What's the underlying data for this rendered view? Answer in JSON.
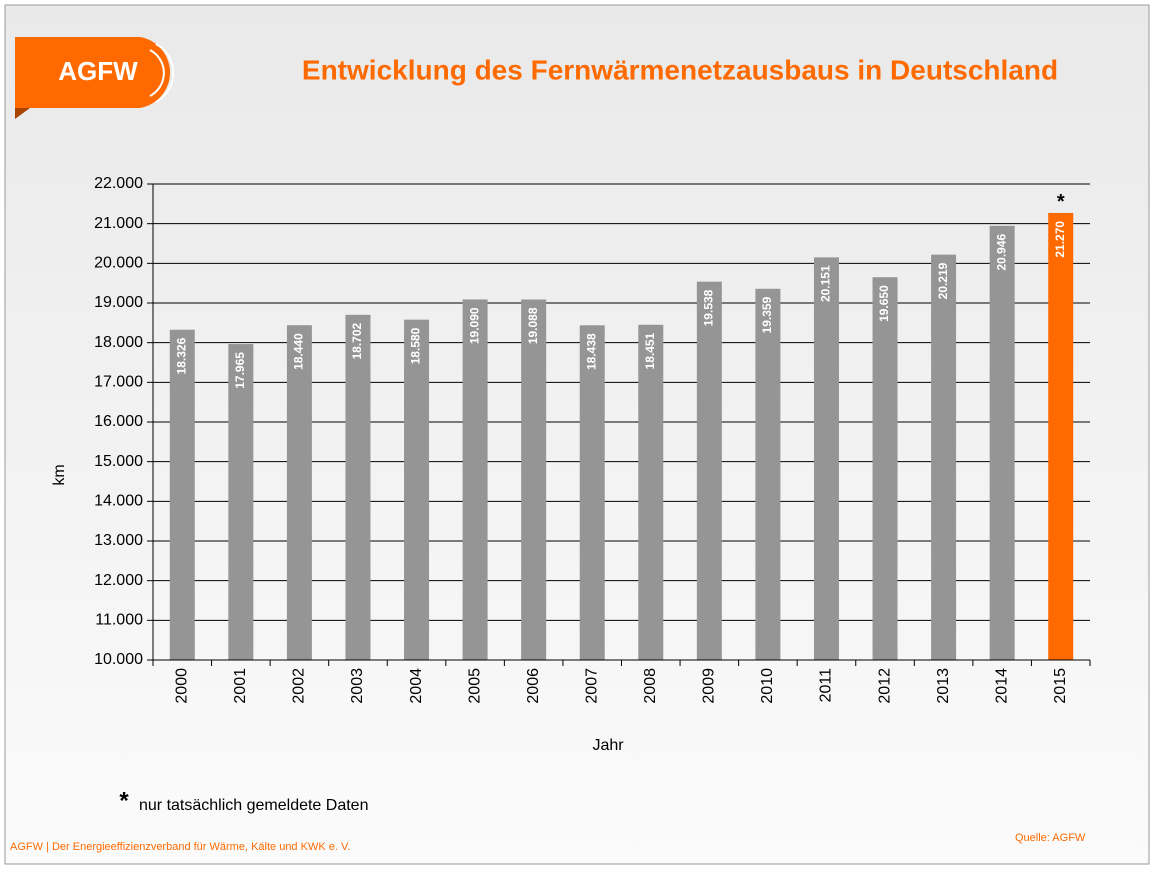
{
  "chart_data": {
    "type": "bar",
    "logo": "AGFW",
    "title": "Entwicklung des Fernwärmenetzausbaus in Deutschland",
    "y_label": "km",
    "x_label": "Jahr",
    "categories": [
      "2000",
      "2001",
      "2002",
      "2003",
      "2004",
      "2005",
      "2006",
      "2007",
      "2008",
      "2009",
      "2010",
      "2011",
      "2012",
      "2013",
      "2014",
      "2015"
    ],
    "values": [
      18326,
      17965,
      18440,
      18702,
      18580,
      19090,
      19088,
      18438,
      18451,
      19538,
      19359,
      20151,
      19650,
      20219,
      20946,
      21270
    ],
    "value_labels": [
      "18.326",
      "17.965",
      "18.440",
      "18.702",
      "18.580",
      "19.090",
      "19.088",
      "18.438",
      "18.451",
      "19.538",
      "19.359",
      "20.151",
      "19.650",
      "20.219",
      "20.946",
      "21.270"
    ],
    "colors": [
      "#959595",
      "#959595",
      "#959595",
      "#959595",
      "#959595",
      "#959595",
      "#959595",
      "#959595",
      "#959595",
      "#959595",
      "#959595",
      "#959595",
      "#959595",
      "#959595",
      "#959595",
      "#ff6a00"
    ],
    "ylim": [
      10000,
      22000
    ],
    "yticks": [
      {
        "value": 10000,
        "label": "10.000"
      },
      {
        "value": 11000,
        "label": "11.000"
      },
      {
        "value": 12000,
        "label": "12.000"
      },
      {
        "value": 13000,
        "label": "13.000"
      },
      {
        "value": 14000,
        "label": "14.000"
      },
      {
        "value": 15000,
        "label": "15.000"
      },
      {
        "value": 16000,
        "label": "16.000"
      },
      {
        "value": 17000,
        "label": "17.000"
      },
      {
        "value": 18000,
        "label": "18.000"
      },
      {
        "value": 19000,
        "label": "19.000"
      },
      {
        "value": 20000,
        "label": "20.000"
      },
      {
        "value": 21000,
        "label": "21.000"
      },
      {
        "value": 22000,
        "label": "22.000"
      }
    ],
    "grid": true,
    "annotation": "*",
    "footnote": {
      "marker": "*",
      "text": "nur tatsächlich gemeldete Daten"
    },
    "footer": "AGFW | Der Energieeffizienzverband für Wärme, Kälte und KWK e. V.",
    "source": "Quelle:  AGFW"
  }
}
